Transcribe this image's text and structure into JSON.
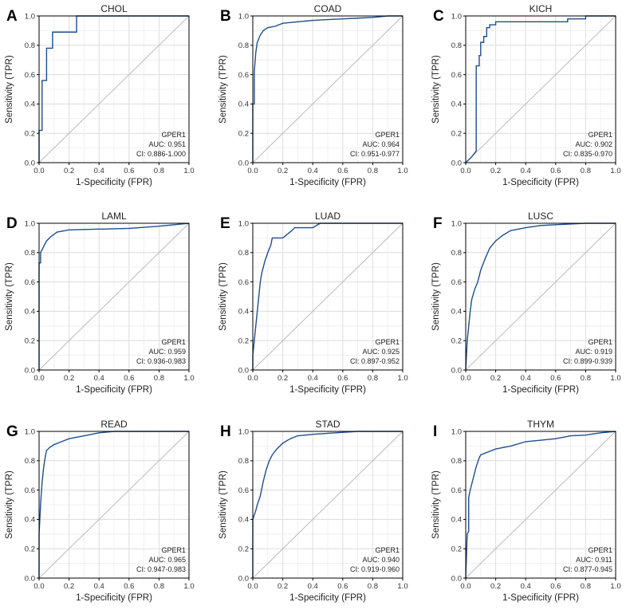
{
  "chart_data": [
    {
      "type": "line",
      "letter": "A",
      "title": "CHOL",
      "xlabel": "1-Specificity (FPR)",
      "ylabel": "Sensitivity (TPR)",
      "xlim": [
        0,
        1
      ],
      "ylim": [
        0,
        1
      ],
      "xticks": [
        "0.0",
        "0.2",
        "0.4",
        "0.6",
        "0.8",
        "1.0"
      ],
      "yticks": [
        "0.0",
        "0.2",
        "0.4",
        "0.6",
        "0.8",
        "1.0"
      ],
      "grid": true,
      "series": [
        {
          "name": "GPER1",
          "color": "#1f4e8c",
          "x": [
            0,
            0,
            0.02,
            0.02,
            0.05,
            0.05,
            0.09,
            0.09,
            0.25,
            0.25,
            1.0
          ],
          "y": [
            0,
            0.22,
            0.22,
            0.56,
            0.56,
            0.78,
            0.78,
            0.89,
            0.89,
            1.0,
            1.0
          ]
        }
      ],
      "diagonal_color": "#bbbbbb",
      "legend": {
        "position": "bottom-right",
        "lines": [
          "GPER1",
          "AUC: 0.951",
          "CI: 0.886-1.000"
        ]
      }
    },
    {
      "type": "line",
      "letter": "B",
      "title": "COAD",
      "xlabel": "1-Specificity (FPR)",
      "ylabel": "Sensitivity (TPR)",
      "xlim": [
        0,
        1
      ],
      "ylim": [
        0,
        1
      ],
      "xticks": [
        "0.0",
        "0.2",
        "0.4",
        "0.6",
        "0.8",
        "1.0"
      ],
      "yticks": [
        "0.0",
        "0.2",
        "0.4",
        "0.6",
        "0.8",
        "1.0"
      ],
      "grid": true,
      "series": [
        {
          "name": "GPER1",
          "color": "#1f4e8c",
          "x": [
            0,
            0,
            0.01,
            0.01,
            0.02,
            0.03,
            0.05,
            0.07,
            0.1,
            0.15,
            0.2,
            0.3,
            0.4,
            0.5,
            0.6,
            0.7,
            0.8,
            0.9,
            1.0
          ],
          "y": [
            0,
            0.4,
            0.4,
            0.62,
            0.75,
            0.82,
            0.87,
            0.9,
            0.92,
            0.93,
            0.95,
            0.96,
            0.97,
            0.975,
            0.98,
            0.985,
            0.99,
            1.0,
            1.0
          ]
        }
      ],
      "diagonal_color": "#bbbbbb",
      "legend": {
        "position": "bottom-right",
        "lines": [
          "GPER1",
          "AUC: 0.964",
          "CI: 0.951-0.977"
        ]
      }
    },
    {
      "type": "line",
      "letter": "C",
      "title": "KICH",
      "xlabel": "1-Specificity (FPR)",
      "ylabel": "Sensitivity (TPR)",
      "xlim": [
        0,
        1
      ],
      "ylim": [
        0,
        1
      ],
      "xticks": [
        "0.0",
        "0.2",
        "0.4",
        "0.6",
        "0.8",
        "1.0"
      ],
      "yticks": [
        "0.0",
        "0.2",
        "0.4",
        "0.6",
        "0.8",
        "1.0"
      ],
      "grid": true,
      "series": [
        {
          "name": "GPER1",
          "color": "#1f4e8c",
          "x": [
            0,
            0.02,
            0.04,
            0.07,
            0.07,
            0.09,
            0.09,
            0.1,
            0.1,
            0.12,
            0.12,
            0.14,
            0.14,
            0.16,
            0.16,
            0.2,
            0.2,
            0.68,
            0.68,
            0.8,
            0.8,
            1.0
          ],
          "y": [
            0,
            0.02,
            0.04,
            0.08,
            0.66,
            0.66,
            0.73,
            0.73,
            0.82,
            0.82,
            0.86,
            0.86,
            0.92,
            0.92,
            0.94,
            0.94,
            0.96,
            0.96,
            0.98,
            0.98,
            1.0,
            1.0
          ]
        }
      ],
      "diagonal_color": "#bbbbbb",
      "legend": {
        "position": "bottom-right",
        "lines": [
          "GPER1",
          "AUC: 0.902",
          "CI: 0.835-0.970"
        ]
      }
    },
    {
      "type": "line",
      "letter": "D",
      "title": "LAML",
      "xlabel": "1-Specificity (FPR)",
      "ylabel": "Sensitivity (TPR)",
      "xlim": [
        0,
        1
      ],
      "ylim": [
        0,
        1
      ],
      "xticks": [
        "0.0",
        "0.2",
        "0.4",
        "0.6",
        "0.8",
        "1.0"
      ],
      "yticks": [
        "0.0",
        "0.2",
        "0.4",
        "0.6",
        "0.8",
        "1.0"
      ],
      "grid": true,
      "series": [
        {
          "name": "GPER1",
          "color": "#1f4e8c",
          "x": [
            0,
            0,
            0.01,
            0.01,
            0.02,
            0.03,
            0.05,
            0.08,
            0.12,
            0.2,
            0.4,
            0.6,
            0.8,
            0.95,
            1.0
          ],
          "y": [
            0,
            0.73,
            0.73,
            0.8,
            0.82,
            0.84,
            0.88,
            0.91,
            0.94,
            0.955,
            0.96,
            0.965,
            0.98,
            0.995,
            1.0
          ]
        }
      ],
      "diagonal_color": "#bbbbbb",
      "legend": {
        "position": "bottom-right",
        "lines": [
          "GPER1",
          "AUC: 0.959",
          "CI: 0.936-0.983"
        ]
      }
    },
    {
      "type": "line",
      "letter": "E",
      "title": "LUAD",
      "xlabel": "1-Specificity (FPR)",
      "ylabel": "Sensitivity (TPR)",
      "xlim": [
        0,
        1
      ],
      "ylim": [
        0,
        1
      ],
      "xticks": [
        "0.0",
        "0.2",
        "0.4",
        "0.6",
        "0.8",
        "1.0"
      ],
      "yticks": [
        "0.0",
        "0.2",
        "0.4",
        "0.6",
        "0.8",
        "1.0"
      ],
      "grid": true,
      "series": [
        {
          "name": "GPER1",
          "color": "#1f4e8c",
          "x": [
            0,
            0,
            0.01,
            0.02,
            0.03,
            0.04,
            0.05,
            0.06,
            0.07,
            0.08,
            0.1,
            0.12,
            0.13,
            0.2,
            0.26,
            0.28,
            0.4,
            0.45,
            1.0
          ],
          "y": [
            0,
            0.1,
            0.2,
            0.3,
            0.4,
            0.5,
            0.6,
            0.66,
            0.7,
            0.74,
            0.8,
            0.85,
            0.9,
            0.9,
            0.95,
            0.97,
            0.97,
            1.0,
            1.0
          ]
        }
      ],
      "diagonal_color": "#bbbbbb",
      "legend": {
        "position": "bottom-right",
        "lines": [
          "GPER1",
          "AUC: 0.925",
          "CI: 0.897-0.952"
        ]
      }
    },
    {
      "type": "line",
      "letter": "F",
      "title": "LUSC",
      "xlabel": "1-Specificity (FPR)",
      "ylabel": "Sensitivity (TPR)",
      "xlim": [
        0,
        1
      ],
      "ylim": [
        0,
        1
      ],
      "xticks": [
        "0.0",
        "0.2",
        "0.4",
        "0.6",
        "0.8",
        "1.0"
      ],
      "yticks": [
        "0.0",
        "0.2",
        "0.4",
        "0.6",
        "0.8",
        "1.0"
      ],
      "grid": true,
      "series": [
        {
          "name": "GPER1",
          "color": "#1f4e8c",
          "x": [
            0,
            0.005,
            0.01,
            0.02,
            0.03,
            0.04,
            0.06,
            0.08,
            0.1,
            0.13,
            0.16,
            0.2,
            0.25,
            0.3,
            0.4,
            0.5,
            0.6,
            0.8,
            1.0
          ],
          "y": [
            0,
            0.1,
            0.2,
            0.3,
            0.4,
            0.48,
            0.55,
            0.6,
            0.68,
            0.76,
            0.83,
            0.88,
            0.92,
            0.95,
            0.97,
            0.985,
            0.99,
            1.0,
            1.0
          ]
        }
      ],
      "diagonal_color": "#bbbbbb",
      "legend": {
        "position": "bottom-right",
        "lines": [
          "GPER1",
          "AUC: 0.919",
          "CI: 0.899-0.939"
        ]
      }
    },
    {
      "type": "line",
      "letter": "G",
      "title": "READ",
      "xlabel": "1-Specificity (FPR)",
      "ylabel": "Sensitivity (TPR)",
      "xlim": [
        0,
        1
      ],
      "ylim": [
        0,
        1
      ],
      "xticks": [
        "0.0",
        "0.2",
        "0.4",
        "0.6",
        "0.8",
        "1.0"
      ],
      "yticks": [
        "0.0",
        "0.2",
        "0.4",
        "0.6",
        "0.8",
        "1.0"
      ],
      "grid": true,
      "series": [
        {
          "name": "GPER1",
          "color": "#1f4e8c",
          "x": [
            0,
            0,
            0.01,
            0.02,
            0.03,
            0.04,
            0.05,
            0.07,
            0.1,
            0.15,
            0.2,
            0.3,
            0.4,
            0.5,
            1.0
          ],
          "y": [
            0,
            0.3,
            0.5,
            0.65,
            0.75,
            0.82,
            0.87,
            0.89,
            0.91,
            0.93,
            0.95,
            0.97,
            0.99,
            1.0,
            1.0
          ]
        }
      ],
      "diagonal_color": "#bbbbbb",
      "legend": {
        "position": "bottom-right",
        "lines": [
          "GPER1",
          "AUC: 0.965",
          "CI: 0.947-0.983"
        ]
      }
    },
    {
      "type": "line",
      "letter": "H",
      "title": "STAD",
      "xlabel": "1-Specificity (FPR)",
      "ylabel": "Sensitivity (TPR)",
      "xlim": [
        0,
        1
      ],
      "ylim": [
        0,
        1
      ],
      "xticks": [
        "0.0",
        "0.2",
        "0.4",
        "0.6",
        "0.8",
        "1.0"
      ],
      "yticks": [
        "0.0",
        "0.2",
        "0.4",
        "0.6",
        "0.8",
        "1.0"
      ],
      "grid": true,
      "series": [
        {
          "name": "GPER1",
          "color": "#1f4e8c",
          "x": [
            0,
            0,
            0.01,
            0.02,
            0.03,
            0.05,
            0.07,
            0.09,
            0.11,
            0.13,
            0.16,
            0.2,
            0.25,
            0.3,
            0.4,
            0.55,
            0.7,
            1.0
          ],
          "y": [
            0,
            0.4,
            0.43,
            0.46,
            0.5,
            0.56,
            0.66,
            0.74,
            0.8,
            0.84,
            0.88,
            0.92,
            0.95,
            0.97,
            0.98,
            0.99,
            1.0,
            1.0
          ]
        }
      ],
      "diagonal_color": "#bbbbbb",
      "legend": {
        "position": "bottom-right",
        "lines": [
          "GPER1",
          "AUC: 0.940",
          "CI: 0.919-0.960"
        ]
      }
    },
    {
      "type": "line",
      "letter": "I",
      "title": "THYM",
      "xlabel": "1-Specificity (FPR)",
      "ylabel": "Sensitivity (TPR)",
      "xlim": [
        0,
        1
      ],
      "ylim": [
        0,
        1
      ],
      "xticks": [
        "0.0",
        "0.2",
        "0.4",
        "0.6",
        "0.8",
        "1.0"
      ],
      "yticks": [
        "0.0",
        "0.2",
        "0.4",
        "0.6",
        "0.8",
        "1.0"
      ],
      "grid": true,
      "series": [
        {
          "name": "GPER1",
          "color": "#1f4e8c",
          "x": [
            0,
            0.01,
            0.02,
            0.02,
            0.03,
            0.04,
            0.05,
            0.06,
            0.07,
            0.09,
            0.1,
            0.15,
            0.2,
            0.3,
            0.4,
            0.5,
            0.6,
            0.7,
            0.8,
            0.9,
            1.0
          ],
          "y": [
            0,
            0.3,
            0.32,
            0.55,
            0.6,
            0.64,
            0.68,
            0.72,
            0.76,
            0.82,
            0.84,
            0.86,
            0.88,
            0.9,
            0.93,
            0.94,
            0.95,
            0.97,
            0.975,
            0.99,
            1.0
          ]
        }
      ],
      "diagonal_color": "#bbbbbb",
      "legend": {
        "position": "bottom-right",
        "lines": [
          "GPER1",
          "AUC: 0.911",
          "CI: 0.877-0.945"
        ]
      }
    }
  ]
}
